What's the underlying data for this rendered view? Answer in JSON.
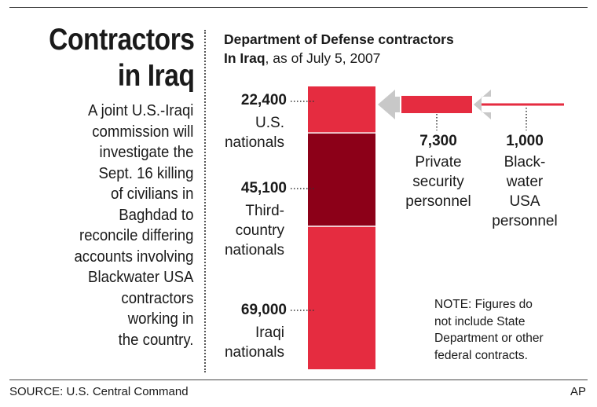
{
  "headline": {
    "line1": "Contractors",
    "line2": "in Iraq"
  },
  "description_lines": [
    "A joint U.S.-Iraqi",
    "commission will",
    "investigate the",
    "Sept. 16 killing",
    "of civilians in",
    "Baghdad to",
    "reconcile differing",
    "accounts involving",
    "Blackwater USA",
    "contractors",
    "working in",
    "the country."
  ],
  "chart_title": {
    "line1": "Department of Defense contractors",
    "line2_bold": "In Iraq",
    "line2_rest": ", as of July 5, 2007"
  },
  "colors": {
    "red": "#e52c40",
    "dark_red": "#8c0018",
    "arrow_gray": "#c8c8c8",
    "text": "#1a1a1a"
  },
  "chart_data": {
    "type": "bar",
    "stacked_bar": {
      "segments": [
        {
          "value": 22400,
          "value_label": "22,400",
          "label_lines": [
            "U.S.",
            "nationals"
          ],
          "color": "#e52c40"
        },
        {
          "value": 45100,
          "value_label": "45,100",
          "label_lines": [
            "Third-",
            "country",
            "nationals"
          ],
          "color": "#8c0018"
        },
        {
          "value": 69000,
          "value_label": "69,000",
          "label_lines": [
            "Iraqi",
            "nationals"
          ],
          "color": "#e52c40"
        }
      ]
    },
    "subsets": [
      {
        "value": 7300,
        "value_label": "7,300",
        "label_lines": [
          "Private",
          "security",
          "personnel"
        ],
        "color": "#e52c40"
      },
      {
        "value": 1000,
        "value_label": "1,000",
        "label_lines": [
          "Black-",
          "water",
          "USA",
          "personnel"
        ],
        "color": "#e52c40"
      }
    ]
  },
  "note_lines": [
    "NOTE: Figures do",
    "not include State",
    "Department or other",
    "federal contracts."
  ],
  "source": "SOURCE: U.S. Central Command",
  "credit": "AP"
}
